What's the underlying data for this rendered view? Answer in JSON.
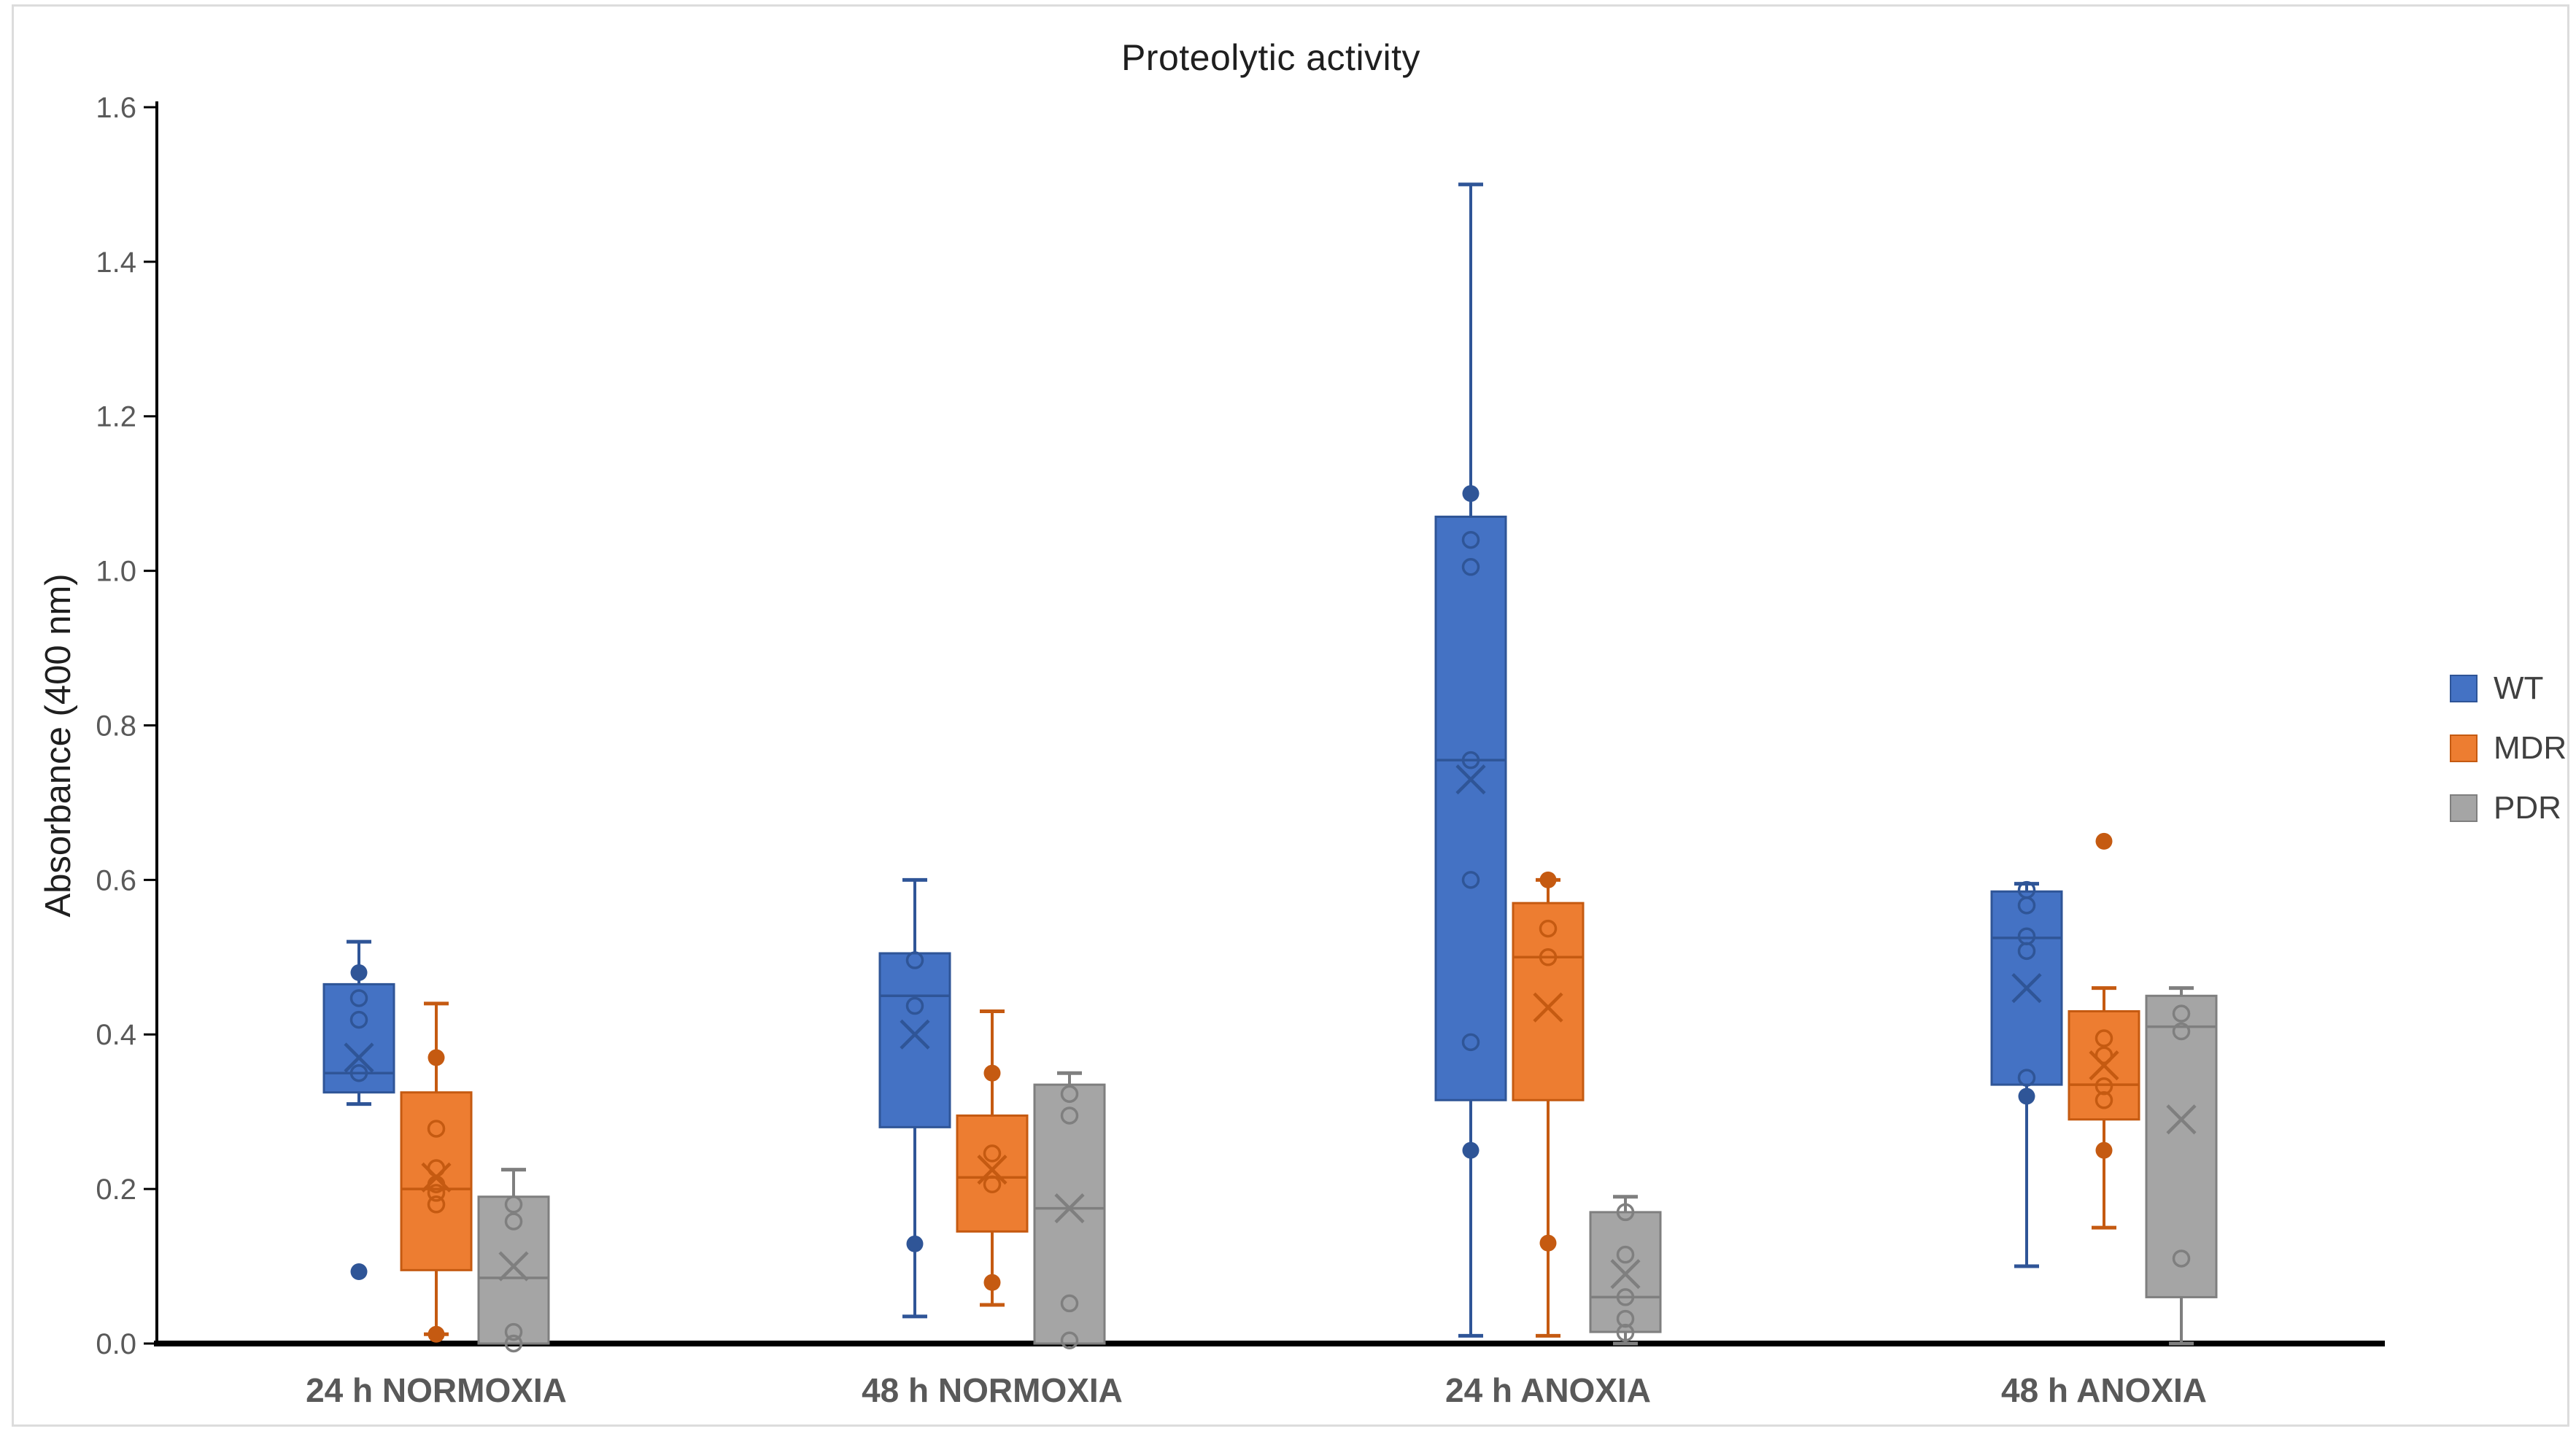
{
  "window": {
    "background": "#ffffff",
    "frame_border_color": "#dcdcdc"
  },
  "chart_data": {
    "type": "box",
    "title": "Proteolytic activity",
    "ylabel": "Absorbance (400 nm)",
    "ylim": [
      0.0,
      1.6
    ],
    "ytick_step": 0.2,
    "ytick_labels": [
      "0.0",
      "0.2",
      "0.4",
      "0.6",
      "0.8",
      "1.0",
      "1.2",
      "1.4",
      "1.6"
    ],
    "grid": false,
    "legend_position": "right",
    "axis_color": "#000000",
    "tick_label_color": "#595959",
    "category_label_color": "#595959",
    "legend_text_color": "#404040",
    "categories": [
      "24 h NORMOXIA",
      "48 h NORMOXIA",
      "24 h ANOXIA",
      "48 h ANOXIA"
    ],
    "series": [
      {
        "name": "WT",
        "fill": "#4472C4",
        "stroke": "#2F5597",
        "boxes": [
          {
            "min": 0.31,
            "q1": 0.325,
            "median": 0.35,
            "q3": 0.465,
            "max": 0.52,
            "mean": 0.37,
            "points": [
              {
                "v": 0.48,
                "style": "filled"
              },
              {
                "v": 0.447,
                "style": "open"
              },
              {
                "v": 0.419,
                "style": "open"
              },
              {
                "v": 0.35,
                "style": "open"
              },
              {
                "v": 0.093,
                "style": "filled"
              }
            ]
          },
          {
            "min": 0.035,
            "q1": 0.28,
            "median": 0.45,
            "q3": 0.505,
            "max": 0.6,
            "mean": 0.4,
            "points": [
              {
                "v": 0.496,
                "style": "open"
              },
              {
                "v": 0.437,
                "style": "open"
              },
              {
                "v": 0.129,
                "style": "filled"
              }
            ]
          },
          {
            "min": 0.01,
            "q1": 0.315,
            "median": 0.755,
            "q3": 1.07,
            "max": 1.5,
            "mean": 0.73,
            "points": [
              {
                "v": 1.1,
                "style": "filled"
              },
              {
                "v": 1.04,
                "style": "open"
              },
              {
                "v": 1.005,
                "style": "open"
              },
              {
                "v": 0.755,
                "style": "open"
              },
              {
                "v": 0.6,
                "style": "open"
              },
              {
                "v": 0.39,
                "style": "open"
              },
              {
                "v": 0.25,
                "style": "filled"
              }
            ]
          },
          {
            "min": 0.1,
            "q1": 0.335,
            "median": 0.525,
            "q3": 0.585,
            "max": 0.595,
            "mean": 0.46,
            "points": [
              {
                "v": 0.587,
                "style": "open"
              },
              {
                "v": 0.567,
                "style": "open"
              },
              {
                "v": 0.527,
                "style": "open"
              },
              {
                "v": 0.508,
                "style": "open"
              },
              {
                "v": 0.344,
                "style": "open"
              },
              {
                "v": 0.32,
                "style": "filled"
              }
            ]
          }
        ]
      },
      {
        "name": "MDR",
        "fill": "#ED7D31",
        "stroke": "#C55A11",
        "boxes": [
          {
            "min": 0.012,
            "q1": 0.095,
            "median": 0.2,
            "q3": 0.325,
            "max": 0.44,
            "mean": 0.215,
            "points": [
              {
                "v": 0.37,
                "style": "filled"
              },
              {
                "v": 0.278,
                "style": "open"
              },
              {
                "v": 0.227,
                "style": "open"
              },
              {
                "v": 0.206,
                "style": "open"
              },
              {
                "v": 0.195,
                "style": "open"
              },
              {
                "v": 0.18,
                "style": "open"
              },
              {
                "v": 0.012,
                "style": "filled"
              }
            ]
          },
          {
            "min": 0.05,
            "q1": 0.145,
            "median": 0.215,
            "q3": 0.295,
            "max": 0.43,
            "mean": 0.225,
            "points": [
              {
                "v": 0.35,
                "style": "filled"
              },
              {
                "v": 0.246,
                "style": "open"
              },
              {
                "v": 0.206,
                "style": "open"
              },
              {
                "v": 0.079,
                "style": "filled"
              }
            ]
          },
          {
            "min": 0.01,
            "q1": 0.315,
            "median": 0.5,
            "q3": 0.57,
            "max": 0.6,
            "mean": 0.435,
            "points": [
              {
                "v": 0.6,
                "style": "filled"
              },
              {
                "v": 0.537,
                "style": "open"
              },
              {
                "v": 0.5,
                "style": "open"
              },
              {
                "v": 0.13,
                "style": "filled"
              }
            ]
          },
          {
            "min": 0.15,
            "q1": 0.29,
            "median": 0.335,
            "q3": 0.43,
            "max": 0.46,
            "mean": 0.36,
            "points": [
              {
                "v": 0.65,
                "style": "filled"
              },
              {
                "v": 0.395,
                "style": "open"
              },
              {
                "v": 0.373,
                "style": "open"
              },
              {
                "v": 0.333,
                "style": "open"
              },
              {
                "v": 0.315,
                "style": "open"
              },
              {
                "v": 0.25,
                "style": "filled"
              }
            ]
          }
        ]
      },
      {
        "name": "PDR",
        "fill": "#A5A5A5",
        "stroke": "#7F7F7F",
        "boxes": [
          {
            "min": 0.0,
            "q1": 0.0,
            "median": 0.085,
            "q3": 0.19,
            "max": 0.225,
            "mean": 0.1,
            "points": [
              {
                "v": 0.18,
                "style": "open"
              },
              {
                "v": 0.158,
                "style": "open"
              },
              {
                "v": 0.015,
                "style": "open"
              },
              {
                "v": 0.0,
                "style": "open"
              }
            ]
          },
          {
            "min": 0.0,
            "q1": 0.0,
            "median": 0.175,
            "q3": 0.335,
            "max": 0.35,
            "mean": 0.175,
            "points": [
              {
                "v": 0.323,
                "style": "open"
              },
              {
                "v": 0.295,
                "style": "open"
              },
              {
                "v": 0.052,
                "style": "open"
              },
              {
                "v": 0.004,
                "style": "open"
              }
            ]
          },
          {
            "min": 0.0,
            "q1": 0.015,
            "median": 0.06,
            "q3": 0.17,
            "max": 0.19,
            "mean": 0.09,
            "points": [
              {
                "v": 0.17,
                "style": "open"
              },
              {
                "v": 0.115,
                "style": "open"
              },
              {
                "v": 0.06,
                "style": "open"
              },
              {
                "v": 0.032,
                "style": "open"
              },
              {
                "v": 0.014,
                "style": "open"
              }
            ]
          },
          {
            "min": 0.0,
            "q1": 0.06,
            "median": 0.41,
            "q3": 0.45,
            "max": 0.46,
            "mean": 0.29,
            "points": [
              {
                "v": 0.427,
                "style": "open"
              },
              {
                "v": 0.404,
                "style": "open"
              },
              {
                "v": 0.11,
                "style": "open"
              }
            ]
          }
        ]
      }
    ]
  }
}
